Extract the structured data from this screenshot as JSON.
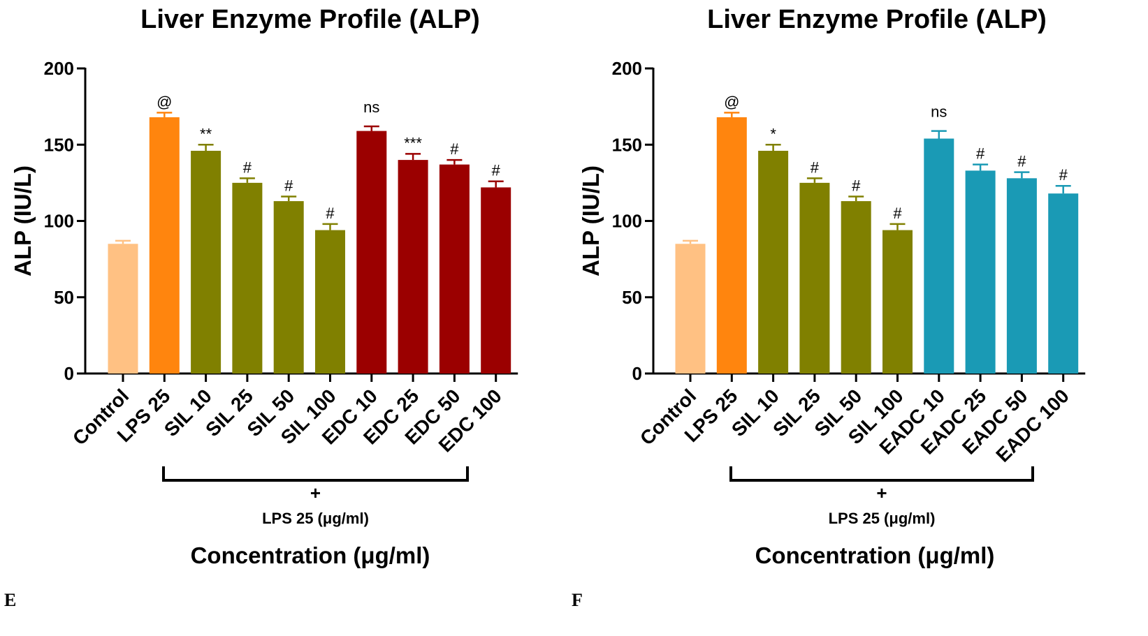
{
  "chart_data": [
    {
      "type": "bar",
      "panel_label": "E",
      "title": "Liver Enzyme Profile (ALP)",
      "ylabel": "ALP (IU/L)",
      "xlabel": "Concentration (μg/ml)",
      "ylim": [
        0,
        200
      ],
      "yticks": [
        "0",
        "50",
        "100",
        "150",
        "200"
      ],
      "categories": [
        "Control",
        "LPS 25",
        "SIL 10",
        "SIL 25",
        "SIL 50",
        "SIL 100",
        "EDC 10",
        "EDC 25",
        "EDC 50",
        "EDC 100"
      ],
      "values": [
        85,
        168,
        146,
        125,
        113,
        94,
        159,
        140,
        137,
        122
      ],
      "errors": [
        2,
        3,
        4,
        3,
        3,
        4,
        3,
        4,
        3,
        4
      ],
      "annotations": [
        "",
        "@",
        "**",
        "#",
        "#",
        "#",
        "ns",
        "***",
        "#",
        "#"
      ],
      "colors": [
        "#FFC183",
        "#FF850E",
        "#808000",
        "#808000",
        "#808000",
        "#808000",
        "#9B0000",
        "#9B0000",
        "#9B0000",
        "#9B0000"
      ],
      "bracket": {
        "plus": "+",
        "label": "LPS 25 (μg/ml)"
      }
    },
    {
      "type": "bar",
      "panel_label": "F",
      "title": "Liver Enzyme Profile (ALP)",
      "ylabel": "ALP (IU/L)",
      "xlabel": "Concentration (μg/ml)",
      "ylim": [
        0,
        200
      ],
      "yticks": [
        "0",
        "50",
        "100",
        "150",
        "200"
      ],
      "categories": [
        "Control",
        "LPS 25",
        "SIL 10",
        "SIL 25",
        "SIL 50",
        "SIL 100",
        "EADC 10",
        "EADC 25",
        "EADC 50",
        "EADC 100"
      ],
      "values": [
        85,
        168,
        146,
        125,
        113,
        94,
        154,
        133,
        128,
        118
      ],
      "errors": [
        2,
        3,
        4,
        3,
        3,
        4,
        5,
        4,
        4,
        5
      ],
      "annotations": [
        "",
        "@",
        "*",
        "#",
        "#",
        "#",
        "ns",
        "#",
        "#",
        "#"
      ],
      "colors": [
        "#FFC183",
        "#FF850E",
        "#808000",
        "#808000",
        "#808000",
        "#808000",
        "#1A9AB5",
        "#1A9AB5",
        "#1A9AB5",
        "#1A9AB5"
      ],
      "bracket": {
        "plus": "+",
        "label": "LPS 25 (μg/ml)"
      }
    }
  ]
}
